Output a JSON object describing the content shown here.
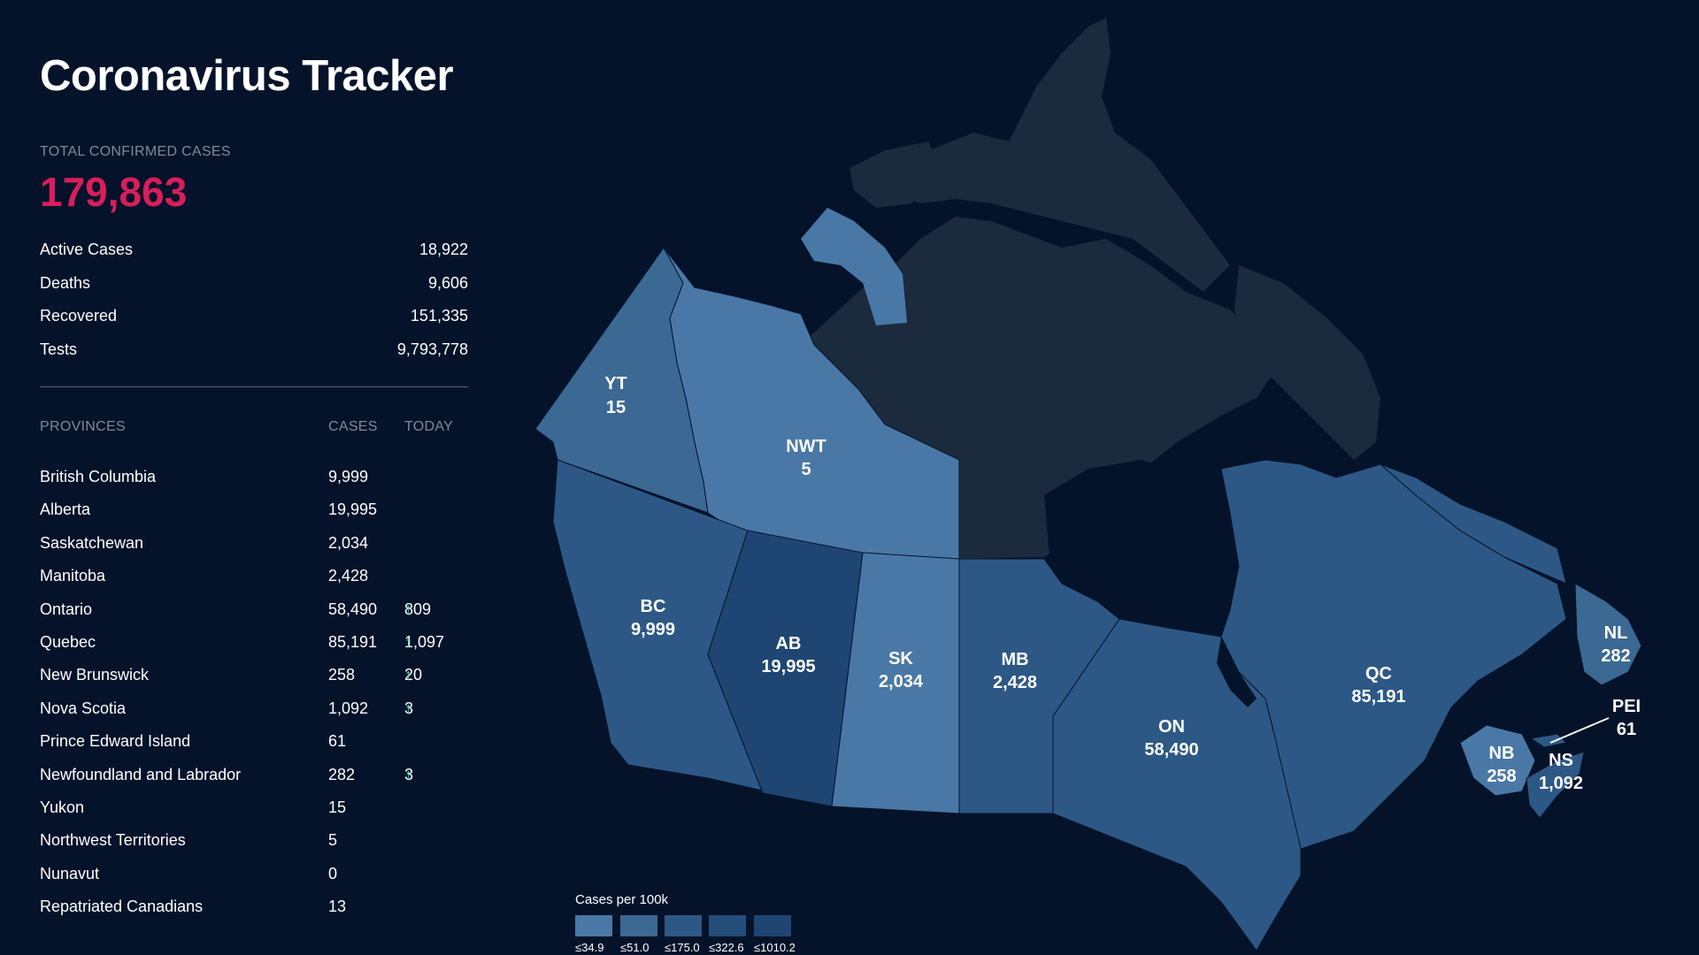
{
  "title": "Coronavirus Tracker",
  "total": {
    "label": "TOTAL CONFIRMED CASES",
    "value": "179,863",
    "color": "#d81e5b"
  },
  "stats": [
    {
      "label": "Active Cases",
      "value": "18,922"
    },
    {
      "label": "Deaths",
      "value": "9,606"
    },
    {
      "label": "Recovered",
      "value": "151,335"
    },
    {
      "label": "Tests",
      "value": "9,793,778"
    }
  ],
  "provinces_header": {
    "name": "PROVINCES",
    "cases": "CASES",
    "today": "TODAY"
  },
  "provinces": [
    {
      "name": "British Columbia",
      "cases": "9,999",
      "today": ""
    },
    {
      "name": "Alberta",
      "cases": "19,995",
      "today": ""
    },
    {
      "name": "Saskatchewan",
      "cases": "2,034",
      "today": ""
    },
    {
      "name": "Manitoba",
      "cases": "2,428",
      "today": ""
    },
    {
      "name": "Ontario",
      "cases": "58,490",
      "today": "809"
    },
    {
      "name": "Quebec",
      "cases": "85,191",
      "today": "1,097"
    },
    {
      "name": "New Brunswick",
      "cases": "258",
      "today": "20"
    },
    {
      "name": "Nova Scotia",
      "cases": "1,092",
      "today": "3"
    },
    {
      "name": "Prince Edward Island",
      "cases": "61",
      "today": ""
    },
    {
      "name": "Newfoundland and Labrador",
      "cases": "282",
      "today": "3"
    },
    {
      "name": "Yukon",
      "cases": "15",
      "today": ""
    },
    {
      "name": "Northwest Territories",
      "cases": "5",
      "today": ""
    },
    {
      "name": "Nunavut",
      "cases": "0",
      "today": ""
    },
    {
      "name": "Repatriated Canadians",
      "cases": "13",
      "today": ""
    }
  ],
  "map": {
    "labels": {
      "yt": {
        "abbr": "YT",
        "cases": "15"
      },
      "nwt": {
        "abbr": "NWT",
        "cases": "5"
      },
      "bc": {
        "abbr": "BC",
        "cases": "9,999"
      },
      "ab": {
        "abbr": "AB",
        "cases": "19,995"
      },
      "sk": {
        "abbr": "SK",
        "cases": "2,034"
      },
      "mb": {
        "abbr": "MB",
        "cases": "2,428"
      },
      "on": {
        "abbr": "ON",
        "cases": "58,490"
      },
      "qc": {
        "abbr": "QC",
        "cases": "85,191"
      },
      "nl": {
        "abbr": "NL",
        "cases": "282"
      },
      "pei": {
        "abbr": "PEI",
        "cases": "61"
      },
      "nb": {
        "abbr": "NB",
        "cases": "258"
      },
      "ns": {
        "abbr": "NS",
        "cases": "1,092"
      }
    },
    "colors": {
      "background": "#04132a",
      "nunavut": "#1b2b3d",
      "light": "#4a78a6",
      "medium": "#2d5885",
      "dark": "#1f4673",
      "darker": "#1a3e67"
    }
  },
  "legend": {
    "title": "Cases per 100k",
    "items": [
      {
        "label": "≤34.9",
        "color": "#4a78a6"
      },
      {
        "label": "≤51.0",
        "color": "#3c6894"
      },
      {
        "label": "≤175.0",
        "color": "#2d5885"
      },
      {
        "label": "≤322.6",
        "color": "#244d7a"
      },
      {
        "label": "≤1010.2",
        "color": "#1f4673"
      }
    ]
  }
}
